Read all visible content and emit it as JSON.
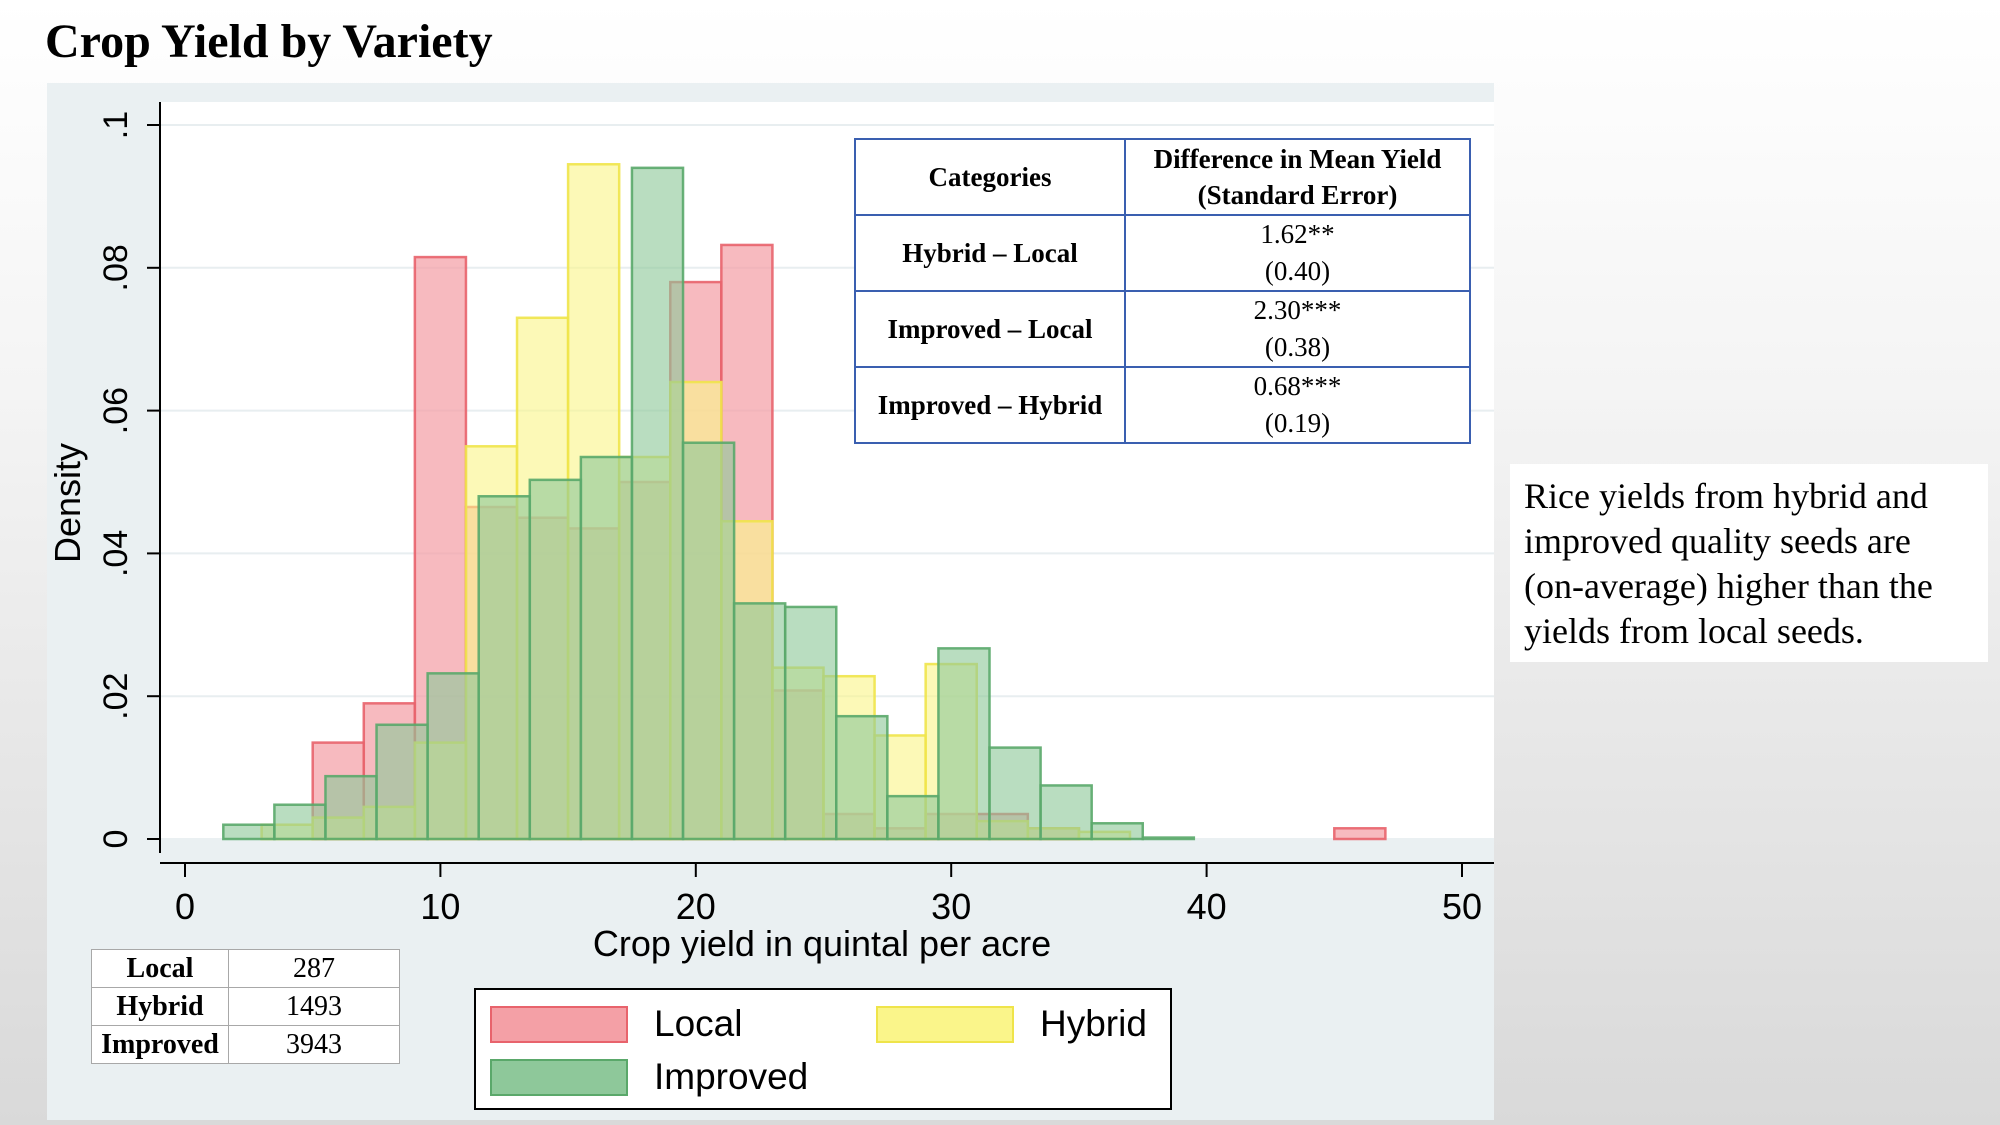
{
  "slide": {
    "title": "Crop Yield by Variety",
    "callout": "Rice yields from hybrid and improved quality seeds are (on-average) higher than the yields from local seeds."
  },
  "colors": {
    "local_fill": "#f4a0a6",
    "local_stroke": "#e8636c",
    "hybrid_fill": "#faf58a",
    "hybrid_stroke": "#efe44a",
    "improved_fill": "#8ec89a",
    "improved_stroke": "#5aa86a"
  },
  "chart_data": {
    "type": "bar",
    "subtype": "overlaid-histogram",
    "xlabel": "Crop yield in quintal per acre",
    "ylabel": "Density",
    "xlim": [
      0,
      50
    ],
    "ylim": [
      0,
      0.1
    ],
    "xticks": [
      0,
      10,
      20,
      30,
      40,
      50
    ],
    "xtick_labels": [
      "0",
      "10",
      "20",
      "30",
      "40",
      "50"
    ],
    "yticks": [
      0,
      0.02,
      0.04,
      0.06,
      0.08,
      0.1
    ],
    "ytick_labels": [
      "0",
      ".02",
      ".04",
      ".06",
      ".08",
      ".1"
    ],
    "grid": "horizontal",
    "legend_position": "bottom",
    "series": [
      {
        "name": "Local",
        "bins": [
          {
            "x0": 5,
            "x1": 7,
            "y": 0.0135
          },
          {
            "x0": 7,
            "x1": 9,
            "y": 0.019
          },
          {
            "x0": 9,
            "x1": 11,
            "y": 0.0815
          },
          {
            "x0": 11,
            "x1": 13,
            "y": 0.0465
          },
          {
            "x0": 13,
            "x1": 15,
            "y": 0.045
          },
          {
            "x0": 15,
            "x1": 17,
            "y": 0.0435
          },
          {
            "x0": 17,
            "x1": 19,
            "y": 0.05
          },
          {
            "x0": 19,
            "x1": 21,
            "y": 0.078
          },
          {
            "x0": 21,
            "x1": 23,
            "y": 0.0832
          },
          {
            "x0": 23,
            "x1": 25,
            "y": 0.0208
          },
          {
            "x0": 25,
            "x1": 27,
            "y": 0.0035
          },
          {
            "x0": 27,
            "x1": 29,
            "y": 0.0015
          },
          {
            "x0": 29,
            "x1": 31,
            "y": 0.0035
          },
          {
            "x0": 31,
            "x1": 33,
            "y": 0.0035
          },
          {
            "x0": 33,
            "x1": 35,
            "y": 0.0015
          },
          {
            "x0": 45,
            "x1": 47,
            "y": 0.0015
          }
        ]
      },
      {
        "name": "Hybrid",
        "bins": [
          {
            "x0": 3,
            "x1": 5,
            "y": 0.002
          },
          {
            "x0": 5,
            "x1": 7,
            "y": 0.003
          },
          {
            "x0": 7,
            "x1": 9,
            "y": 0.0045
          },
          {
            "x0": 9,
            "x1": 11,
            "y": 0.0135
          },
          {
            "x0": 11,
            "x1": 13,
            "y": 0.055
          },
          {
            "x0": 13,
            "x1": 15,
            "y": 0.073
          },
          {
            "x0": 15,
            "x1": 17,
            "y": 0.0945
          },
          {
            "x0": 17,
            "x1": 19,
            "y": 0.0535
          },
          {
            "x0": 19,
            "x1": 21,
            "y": 0.064
          },
          {
            "x0": 21,
            "x1": 23,
            "y": 0.0445
          },
          {
            "x0": 23,
            "x1": 25,
            "y": 0.024
          },
          {
            "x0": 25,
            "x1": 27,
            "y": 0.0228
          },
          {
            "x0": 27,
            "x1": 29,
            "y": 0.0145
          },
          {
            "x0": 29,
            "x1": 31,
            "y": 0.0245
          },
          {
            "x0": 31,
            "x1": 33,
            "y": 0.0025
          },
          {
            "x0": 33,
            "x1": 35,
            "y": 0.0015
          },
          {
            "x0": 35,
            "x1": 37,
            "y": 0.001
          }
        ]
      },
      {
        "name": "Improved",
        "bins": [
          {
            "x0": 1.5,
            "x1": 3.5,
            "y": 0.002
          },
          {
            "x0": 3.5,
            "x1": 5.5,
            "y": 0.0048
          },
          {
            "x0": 5.5,
            "x1": 7.5,
            "y": 0.0088
          },
          {
            "x0": 7.5,
            "x1": 9.5,
            "y": 0.016
          },
          {
            "x0": 9.5,
            "x1": 11.5,
            "y": 0.0232
          },
          {
            "x0": 11.5,
            "x1": 13.5,
            "y": 0.048
          },
          {
            "x0": 13.5,
            "x1": 15.5,
            "y": 0.0503
          },
          {
            "x0": 15.5,
            "x1": 17.5,
            "y": 0.0535
          },
          {
            "x0": 17.5,
            "x1": 19.5,
            "y": 0.094
          },
          {
            "x0": 19.5,
            "x1": 21.5,
            "y": 0.0555
          },
          {
            "x0": 21.5,
            "x1": 23.5,
            "y": 0.033
          },
          {
            "x0": 23.5,
            "x1": 25.5,
            "y": 0.0325
          },
          {
            "x0": 25.5,
            "x1": 27.5,
            "y": 0.0172
          },
          {
            "x0": 27.5,
            "x1": 29.5,
            "y": 0.006
          },
          {
            "x0": 29.5,
            "x1": 31.5,
            "y": 0.0267
          },
          {
            "x0": 31.5,
            "x1": 33.5,
            "y": 0.0128
          },
          {
            "x0": 33.5,
            "x1": 35.5,
            "y": 0.0075
          },
          {
            "x0": 35.5,
            "x1": 37.5,
            "y": 0.0022
          },
          {
            "x0": 37.5,
            "x1": 39.5,
            "y": 0.0002
          }
        ]
      }
    ]
  },
  "diff_table": {
    "header": {
      "col1": "Categories",
      "col2_line1": "Difference in Mean Yield",
      "col2_line2": "(Standard Error)"
    },
    "rows": [
      {
        "category": "Hybrid – Local",
        "estimate": "1.62**",
        "se": "(0.40)"
      },
      {
        "category": "Improved – Local",
        "estimate": "2.30***",
        "se": "(0.38)"
      },
      {
        "category": "Improved – Hybrid",
        "estimate": "0.68***",
        "se": "(0.19)"
      }
    ]
  },
  "counts_table": [
    {
      "label": "Local",
      "value": "287"
    },
    {
      "label": "Hybrid",
      "value": "1493"
    },
    {
      "label": "Improved",
      "value": "3943"
    }
  ],
  "legend": {
    "items": [
      {
        "label": "Local"
      },
      {
        "label": "Hybrid"
      },
      {
        "label": "Improved"
      }
    ]
  }
}
